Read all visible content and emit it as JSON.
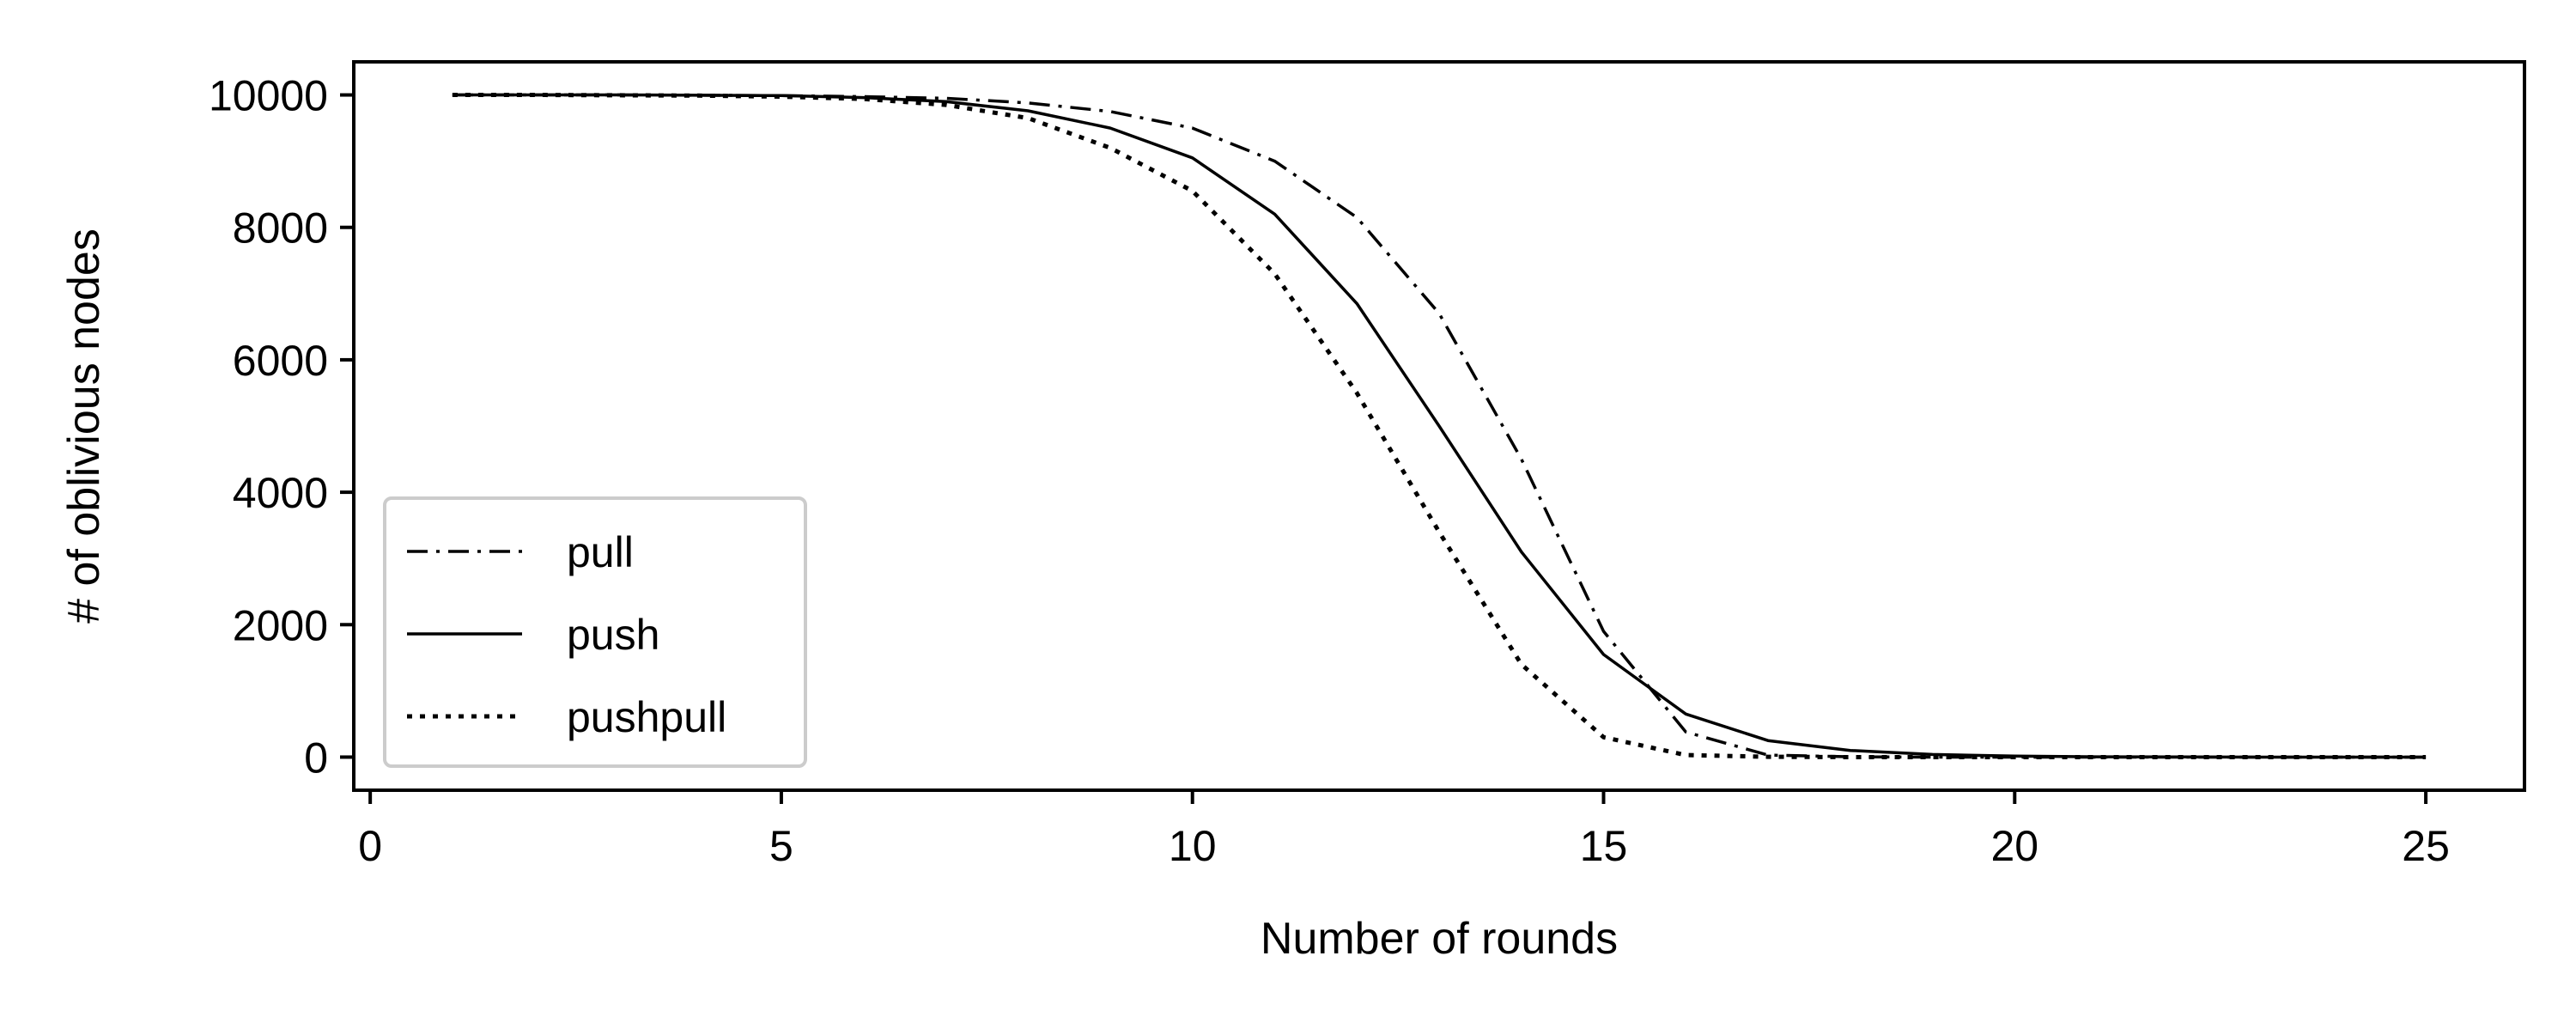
{
  "chart_data": {
    "type": "line",
    "title": "",
    "xlabel": "Number of rounds",
    "ylabel": "# of oblivious nodes",
    "xlim": [
      -0.2,
      26.2
    ],
    "ylim": [
      -500,
      10500
    ],
    "xticks": [
      0,
      5,
      10,
      15,
      20,
      25
    ],
    "yticks": [
      0,
      2000,
      4000,
      6000,
      8000,
      10000
    ],
    "xtick_labels": [
      "0",
      "5",
      "10",
      "15",
      "20",
      "25"
    ],
    "ytick_labels": [
      "0",
      "2000",
      "4000",
      "6000",
      "8000",
      "10000"
    ],
    "grid": false,
    "legend_position": "lower-left",
    "x": [
      1,
      2,
      3,
      4,
      5,
      6,
      7,
      8,
      9,
      10,
      11,
      12,
      13,
      14,
      15,
      16,
      17,
      18,
      19,
      20,
      21,
      22,
      23,
      24,
      25
    ],
    "series": [
      {
        "name": "pull",
        "line_style": "dashdot",
        "values": [
          10000,
          10000,
          10000,
          9995,
          9990,
          9975,
          9950,
          9880,
          9750,
          9500,
          9000,
          8150,
          6700,
          4500,
          1900,
          380,
          30,
          5,
          0,
          0,
          0,
          0,
          0,
          0,
          0
        ]
      },
      {
        "name": "push",
        "line_style": "solid",
        "values": [
          10000,
          10000,
          10000,
          9995,
          9990,
          9960,
          9900,
          9760,
          9500,
          9050,
          8200,
          6850,
          5000,
          3100,
          1550,
          650,
          250,
          100,
          40,
          15,
          5,
          2,
          0,
          0,
          0
        ]
      },
      {
        "name": "pushpull",
        "line_style": "dotted",
        "values": [
          10000,
          10000,
          9995,
          9990,
          9975,
          9940,
          9850,
          9650,
          9200,
          8550,
          7300,
          5500,
          3400,
          1400,
          300,
          30,
          5,
          0,
          0,
          0,
          0,
          0,
          0,
          0,
          0
        ]
      }
    ]
  },
  "colors": {
    "line": "#000000",
    "axis": "#000000",
    "legend_border": "#cccccc",
    "background": "#ffffff"
  }
}
